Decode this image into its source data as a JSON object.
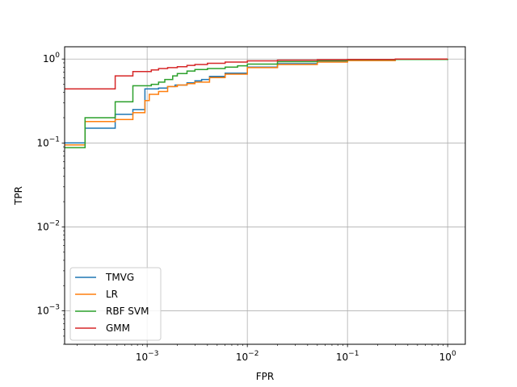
{
  "chart_data": {
    "type": "line",
    "xlabel": "FPR",
    "ylabel": "TPR",
    "xscale": "log",
    "yscale": "log",
    "xlim": [
      0.00015,
      1.5
    ],
    "ylim": [
      0.0004,
      1.4
    ],
    "grid": true,
    "legend_position": "lower-left",
    "x_ticks": [
      {
        "value": 0.001,
        "base": "10",
        "exp": "−3"
      },
      {
        "value": 0.01,
        "base": "10",
        "exp": "−2"
      },
      {
        "value": 0.1,
        "base": "10",
        "exp": "−1"
      },
      {
        "value": 1,
        "base": "10",
        "exp": "0"
      }
    ],
    "y_ticks": [
      {
        "value": 0.001,
        "base": "10",
        "exp": "−3"
      },
      {
        "value": 0.01,
        "base": "10",
        "exp": "−2"
      },
      {
        "value": 0.1,
        "base": "10",
        "exp": "−1"
      },
      {
        "value": 1,
        "base": "10",
        "exp": "0"
      }
    ],
    "series": [
      {
        "name": "TMVG",
        "color": "#1f77b4",
        "x": [
          0.00015,
          0.00024,
          0.00024,
          0.00048,
          0.00048,
          0.00072,
          0.00072,
          0.00095,
          0.00095,
          0.0013,
          0.0016,
          0.0019,
          0.0025,
          0.003,
          0.0035,
          0.0042,
          0.006,
          0.01,
          0.02,
          0.05,
          0.1,
          0.3,
          1.0
        ],
        "y": [
          0.1,
          0.1,
          0.15,
          0.15,
          0.22,
          0.22,
          0.25,
          0.25,
          0.44,
          0.45,
          0.47,
          0.49,
          0.52,
          0.55,
          0.57,
          0.62,
          0.68,
          0.8,
          0.88,
          0.94,
          0.97,
          0.99,
          1.0
        ]
      },
      {
        "name": "LR",
        "color": "#ff7f0e",
        "x": [
          0.00015,
          0.00024,
          0.00024,
          0.00048,
          0.00048,
          0.00072,
          0.00072,
          0.00095,
          0.00095,
          0.00105,
          0.00105,
          0.0013,
          0.0013,
          0.0016,
          0.0016,
          0.002,
          0.0025,
          0.003,
          0.0042,
          0.006,
          0.01,
          0.02,
          0.05,
          0.1,
          0.3,
          1.0
        ],
        "y": [
          0.095,
          0.095,
          0.18,
          0.18,
          0.19,
          0.19,
          0.23,
          0.23,
          0.32,
          0.32,
          0.38,
          0.38,
          0.41,
          0.41,
          0.47,
          0.49,
          0.51,
          0.53,
          0.6,
          0.66,
          0.79,
          0.86,
          0.92,
          0.96,
          0.99,
          1.0
        ]
      },
      {
        "name": "RBF SVM",
        "color": "#2ca02c",
        "x": [
          0.00015,
          0.00024,
          0.00024,
          0.00048,
          0.00048,
          0.00072,
          0.00072,
          0.0011,
          0.0013,
          0.0015,
          0.0018,
          0.002,
          0.0025,
          0.003,
          0.004,
          0.006,
          0.008,
          0.01,
          0.02,
          0.05,
          0.1,
          0.3,
          1.0
        ],
        "y": [
          0.088,
          0.088,
          0.2,
          0.2,
          0.31,
          0.31,
          0.48,
          0.5,
          0.53,
          0.57,
          0.63,
          0.67,
          0.72,
          0.75,
          0.77,
          0.8,
          0.83,
          0.87,
          0.93,
          0.96,
          0.98,
          0.99,
          1.0
        ]
      },
      {
        "name": "GMM",
        "color": "#d62728",
        "x": [
          0.00015,
          0.00048,
          0.00048,
          0.00072,
          0.00072,
          0.0011,
          0.0013,
          0.0016,
          0.002,
          0.0025,
          0.003,
          0.004,
          0.006,
          0.01,
          0.02,
          0.05,
          0.1,
          0.3,
          1.0
        ],
        "y": [
          0.44,
          0.44,
          0.63,
          0.63,
          0.71,
          0.74,
          0.77,
          0.79,
          0.81,
          0.84,
          0.86,
          0.89,
          0.92,
          0.95,
          0.97,
          0.98,
          0.99,
          1.0,
          1.0
        ]
      }
    ]
  }
}
